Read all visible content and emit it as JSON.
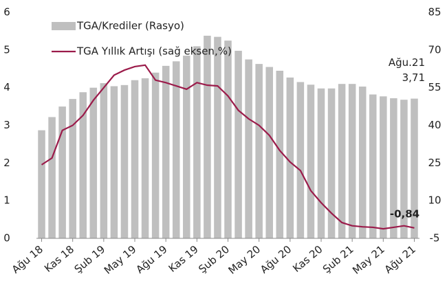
{
  "chart_data": {
    "type": "bar_line",
    "categories": [
      "Ağu 18",
      null,
      null,
      "Kas 18",
      null,
      null,
      "Şub 19",
      null,
      null,
      "May 19",
      null,
      null,
      "Ağu 19",
      null,
      null,
      "Kas 19",
      null,
      null,
      "Şub 20",
      null,
      null,
      "May 20",
      null,
      null,
      "Ağu 20",
      null,
      null,
      "Kas 20",
      null,
      null,
      "Şub 21",
      null,
      null,
      "May 21",
      null,
      null,
      "Ağu 21"
    ],
    "series": [
      {
        "name": "TGA/Krediler (Rasyo)",
        "type": "bar",
        "color": "#bfbfbf",
        "values": [
          2.87,
          3.22,
          3.5,
          3.7,
          3.88,
          4.0,
          4.12,
          4.04,
          4.07,
          4.2,
          4.25,
          4.4,
          4.58,
          4.7,
          4.85,
          5.1,
          5.38,
          5.35,
          5.25,
          4.98,
          4.75,
          4.63,
          4.55,
          4.45,
          4.27,
          4.15,
          4.08,
          3.98,
          3.98,
          4.1,
          4.1,
          4.03,
          3.82,
          3.77,
          3.72,
          3.68,
          3.71
        ],
        "value_labels": [
          null,
          null,
          null,
          null,
          null,
          null,
          null,
          null,
          null,
          null,
          null,
          null,
          null,
          null,
          null,
          null,
          null,
          null,
          null,
          null,
          null,
          null,
          null,
          null,
          null,
          null,
          null,
          null,
          null,
          null,
          null,
          null,
          null,
          null,
          null,
          null,
          "3,71"
        ]
      },
      {
        "name": "TGA Yıllık Artışı (sağ eksen,%)",
        "type": "line",
        "axis": "y2",
        "color": "#9b1b4a",
        "values": [
          24.3,
          27,
          38,
          40,
          44,
          50,
          55,
          60,
          62,
          63.4,
          64,
          58,
          57,
          55.7,
          54.4,
          57,
          56,
          55.7,
          51.7,
          46,
          42.6,
          40,
          36,
          30,
          25.4,
          22,
          14,
          9.2,
          5,
          1.3,
          0,
          -0.4,
          -0.6,
          -1.2,
          -0.6,
          0,
          -0.84
        ],
        "value_labels": [
          null,
          null,
          null,
          null,
          null,
          null,
          null,
          null,
          null,
          null,
          null,
          null,
          null,
          null,
          null,
          null,
          null,
          null,
          null,
          null,
          null,
          null,
          null,
          null,
          null,
          null,
          null,
          null,
          null,
          null,
          null,
          null,
          null,
          null,
          null,
          null,
          "-0,84"
        ]
      }
    ],
    "annotations": [
      "Ağu.21"
    ],
    "ylim": [
      0,
      6
    ],
    "yticks": [
      0,
      1,
      2,
      3,
      4,
      5,
      6
    ],
    "y2lim": [
      -5,
      85
    ],
    "y2ticks": [
      -5,
      10,
      25,
      40,
      55,
      70,
      85
    ],
    "legend": "top-left"
  }
}
